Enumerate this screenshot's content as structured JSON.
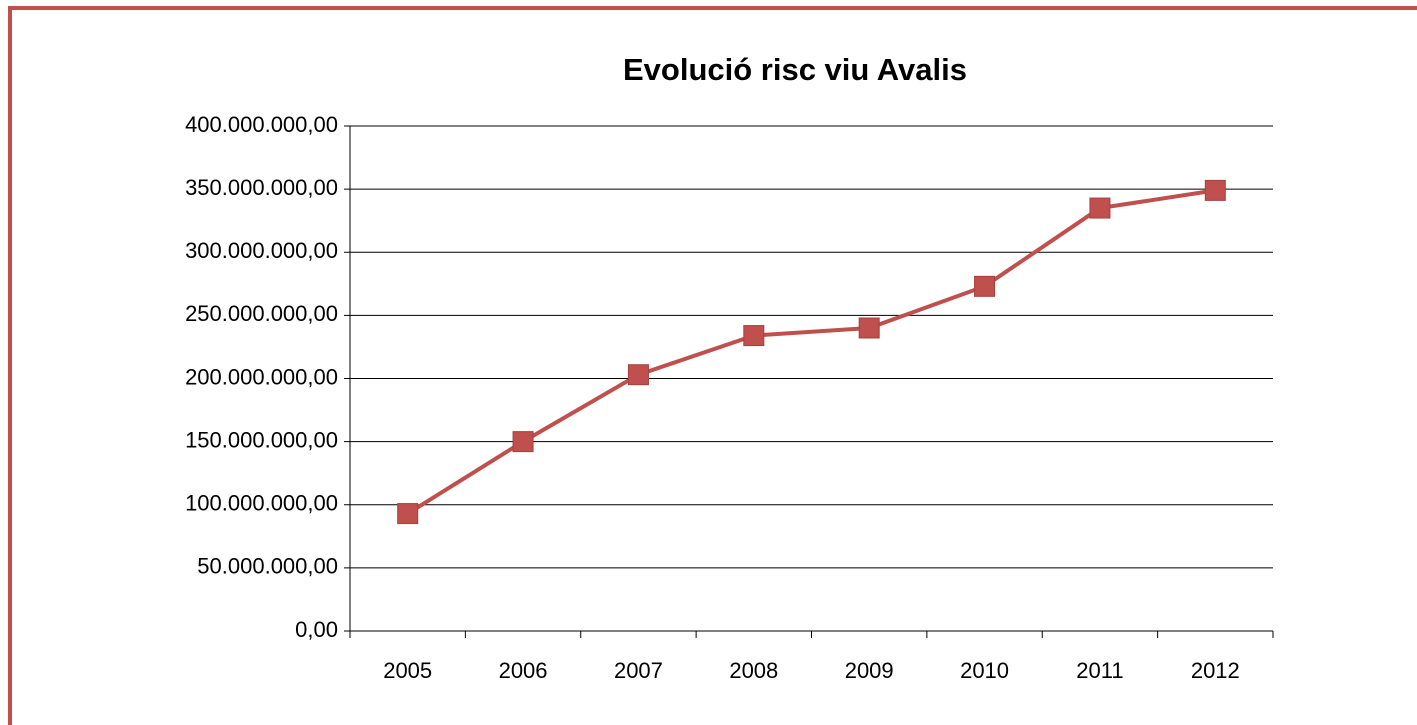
{
  "chart_data": {
    "type": "line",
    "title": "Evolució risc viu Avalis",
    "categories": [
      "2005",
      "2006",
      "2007",
      "2008",
      "2009",
      "2010",
      "2011",
      "2012"
    ],
    "series": [
      {
        "name": "Risc viu",
        "color": "#c0504d",
        "values": [
          93000000,
          150000000,
          203000000,
          234000000,
          240000000,
          273000000,
          335000000,
          349000000
        ]
      }
    ],
    "ylim": [
      0,
      400000000
    ],
    "yticks": [
      {
        "value": 0,
        "label": "0,00"
      },
      {
        "value": 50000000,
        "label": "50.000.000,00"
      },
      {
        "value": 100000000,
        "label": "100.000.000,00"
      },
      {
        "value": 150000000,
        "label": "150.000.000,00"
      },
      {
        "value": 200000000,
        "label": "200.000.000,00"
      },
      {
        "value": 250000000,
        "label": "250.000.000,00"
      },
      {
        "value": 300000000,
        "label": "300.000.000,00"
      },
      {
        "value": 350000000,
        "label": "350.000.000,00"
      },
      {
        "value": 400000000,
        "label": "400.000.000,00"
      }
    ],
    "grid": true
  }
}
